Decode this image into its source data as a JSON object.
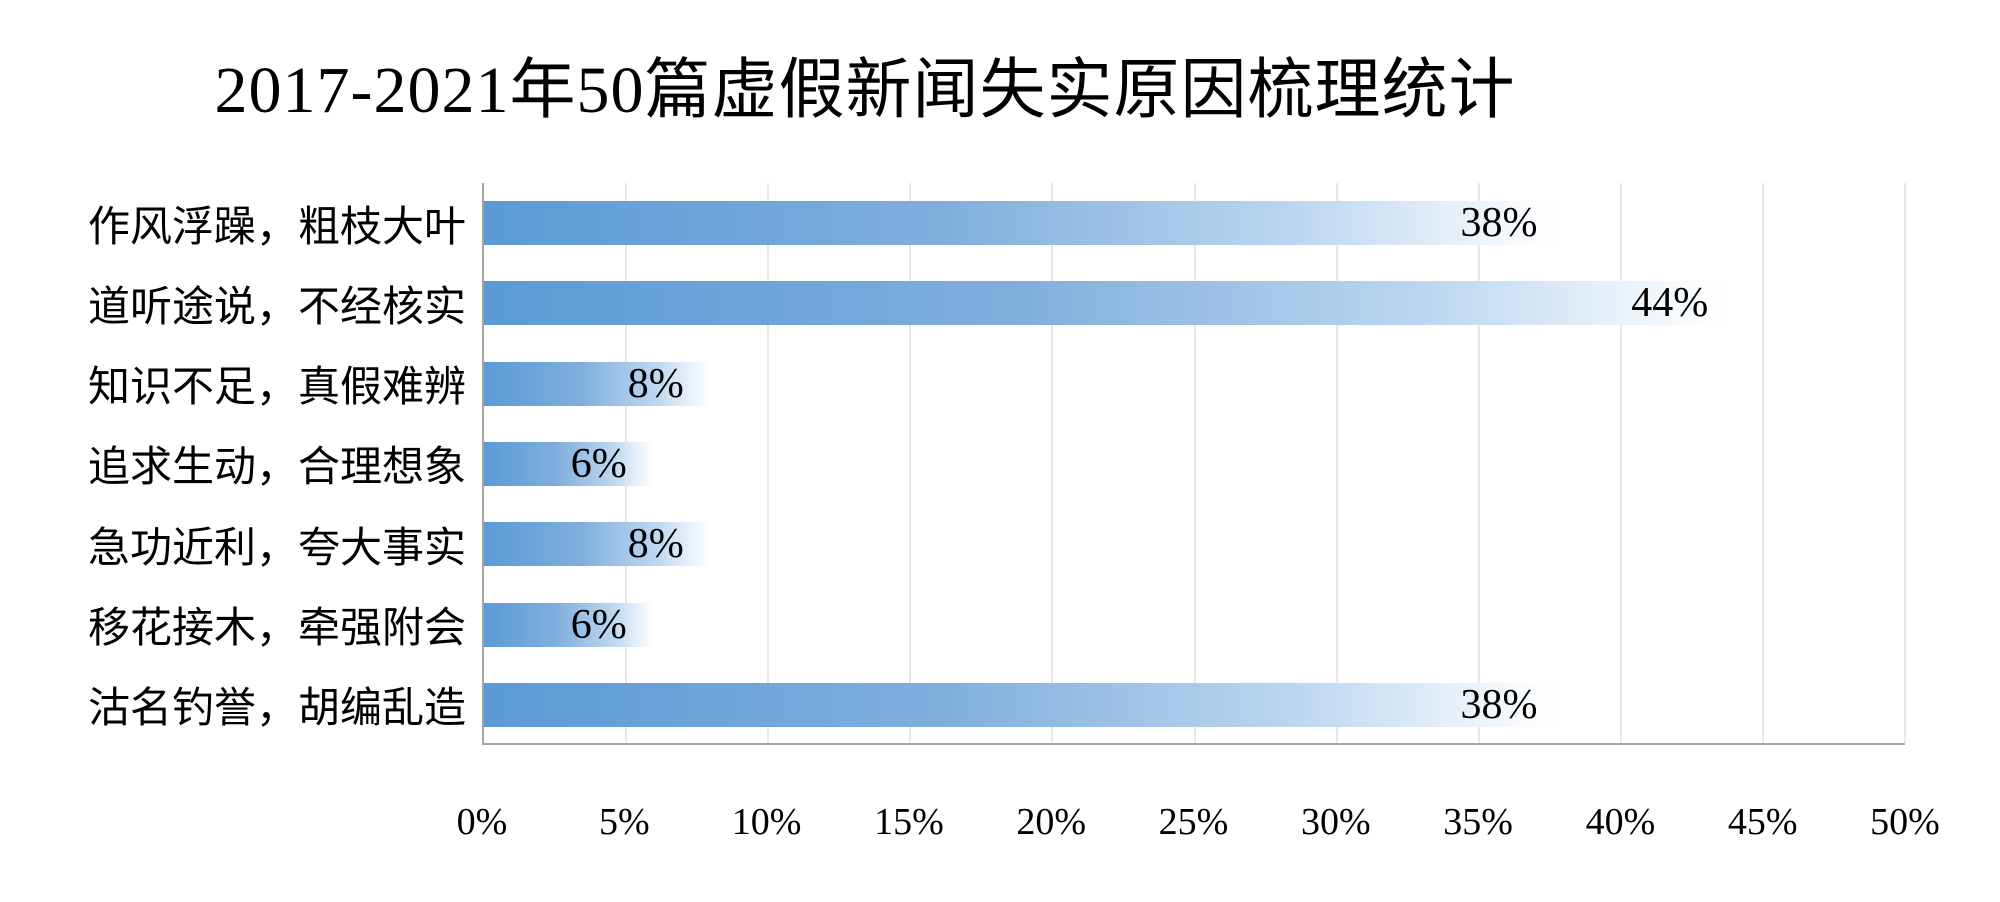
{
  "chart_data": {
    "type": "bar",
    "orientation": "horizontal",
    "title": "2017-2021年50篇虚假新闻失实原因梳理统计",
    "categories": [
      "作风浮躁，粗枝大叶",
      "道听途说，不经核实",
      "知识不足，真假难辨",
      "追求生动，合理想象",
      "急功近利，夸大事实",
      "移花接木，牵强附会",
      "沽名钓誉，胡编乱造"
    ],
    "values": [
      38,
      44,
      8,
      6,
      8,
      6,
      38
    ],
    "value_labels": [
      "38%",
      "44%",
      "8%",
      "6%",
      "8%",
      "6%",
      "38%"
    ],
    "xlabel": "",
    "ylabel": "",
    "xlim": [
      0,
      50
    ],
    "xticks": [
      0,
      5,
      10,
      15,
      20,
      25,
      30,
      35,
      40,
      45,
      50
    ],
    "xtick_labels": [
      "0%",
      "5%",
      "10%",
      "15%",
      "20%",
      "25%",
      "30%",
      "35%",
      "40%",
      "45%",
      "50%"
    ],
    "grid": "vertical gridlines every 5%",
    "legend_position": "none",
    "data_label_position": "inside-end",
    "colors": {
      "bar_gradient_start": "#5B9BD5",
      "bar_gradient_end": "#FFFFFF",
      "axis_line": "#A6A6A6",
      "gridline": "#E6E8EB",
      "text": "#000000",
      "background": "#FFFFFF"
    }
  }
}
